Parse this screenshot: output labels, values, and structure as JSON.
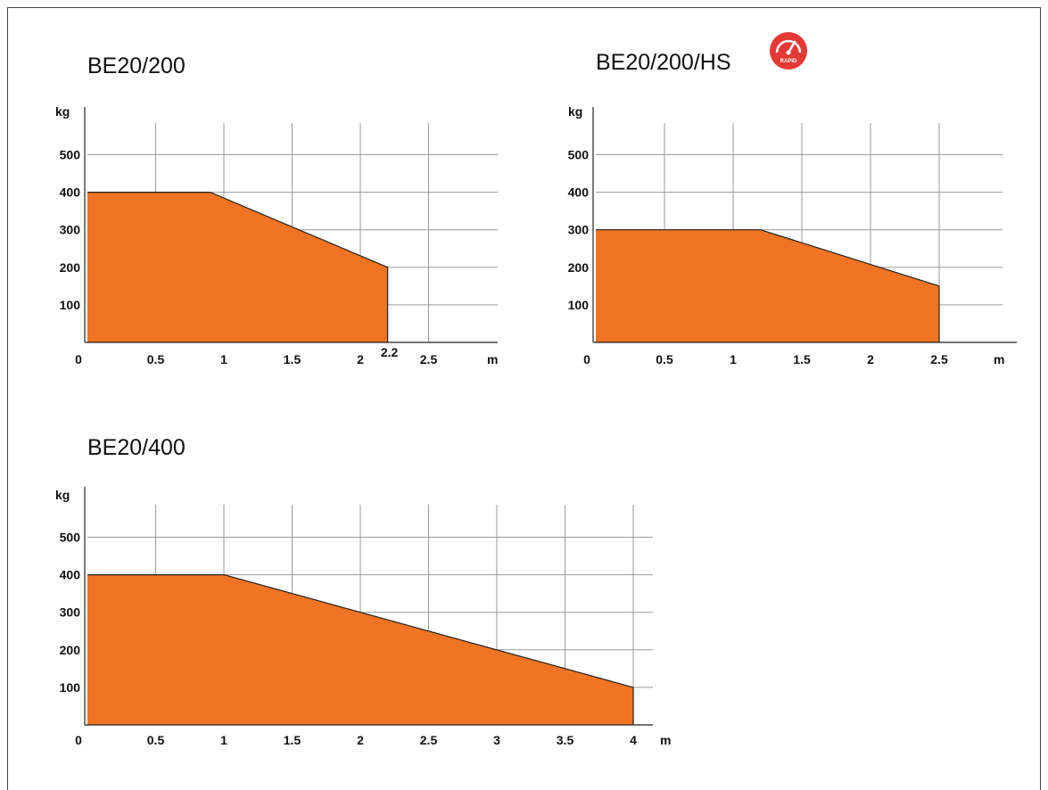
{
  "chart_data": [
    {
      "type": "area",
      "title": "BE20/200",
      "xlabel": "m",
      "ylabel": "kg",
      "x_ticks": [
        "0",
        "0.5",
        "1",
        "1.5",
        "2",
        "2.2",
        "2.5"
      ],
      "y_ticks": [
        "100",
        "200",
        "300",
        "400",
        "500"
      ],
      "xlim": [
        0,
        3
      ],
      "ylim": [
        0,
        600
      ],
      "grid": true,
      "fill_color": "#f07423",
      "series": [
        {
          "x": [
            0,
            0.9,
            2.2,
            2.2
          ],
          "y": [
            400,
            400,
            200,
            0
          ]
        }
      ]
    },
    {
      "type": "area",
      "title": "BE20/200/HS",
      "badge": {
        "text": "RAPID",
        "icon": "speedometer-icon",
        "color": "#e53935"
      },
      "xlabel": "m",
      "ylabel": "kg",
      "x_ticks": [
        "0",
        "0.5",
        "1",
        "1.5",
        "2",
        "2.5"
      ],
      "y_ticks": [
        "100",
        "200",
        "300",
        "400",
        "500"
      ],
      "xlim": [
        0,
        3
      ],
      "ylim": [
        0,
        600
      ],
      "grid": true,
      "fill_color": "#f07423",
      "series": [
        {
          "x": [
            0,
            1.2,
            2.5,
            2.5
          ],
          "y": [
            300,
            300,
            150,
            0
          ]
        }
      ]
    },
    {
      "type": "area",
      "title": "BE20/400",
      "xlabel": "m",
      "ylabel": "kg",
      "x_ticks": [
        "0",
        "0.5",
        "1",
        "1.5",
        "2",
        "2.5",
        "3",
        "3.5",
        "4"
      ],
      "y_ticks": [
        "100",
        "200",
        "300",
        "400",
        "500"
      ],
      "xlim": [
        0,
        4
      ],
      "ylim": [
        0,
        600
      ],
      "grid": true,
      "fill_color": "#f07423",
      "series": [
        {
          "x": [
            0,
            1,
            4,
            4
          ],
          "y": [
            400,
            400,
            100,
            0
          ]
        }
      ]
    }
  ]
}
